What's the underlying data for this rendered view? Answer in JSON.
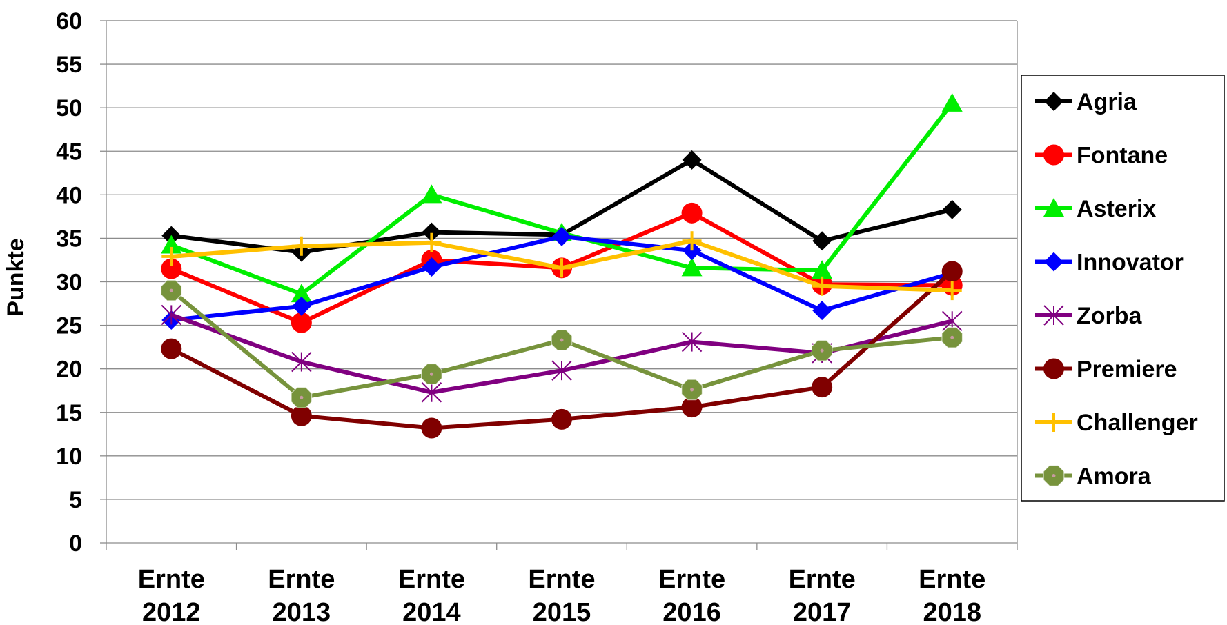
{
  "chart_data": {
    "type": "line",
    "ylabel": "Punkte",
    "ylim": [
      0,
      60
    ],
    "ytick_step": 5,
    "grid": "horizontal",
    "legend": "right",
    "categories": [
      [
        "Ernte",
        "2012"
      ],
      [
        "Ernte",
        "2013"
      ],
      [
        "Ernte",
        "2014"
      ],
      [
        "Ernte",
        "2015"
      ],
      [
        "Ernte",
        "2016"
      ],
      [
        "Ernte",
        "2017"
      ],
      [
        "Ernte",
        "2018"
      ]
    ],
    "series": [
      {
        "name": "Agria",
        "color": "#000000",
        "marker": "diamond",
        "values": [
          35.3,
          33.4,
          35.7,
          35.4,
          44.0,
          34.7,
          38.3
        ]
      },
      {
        "name": "Fontane",
        "color": "#ff0000",
        "marker": "circle",
        "values": [
          31.5,
          25.3,
          32.5,
          31.6,
          37.9,
          29.7,
          29.6
        ]
      },
      {
        "name": "Asterix",
        "color": "#00ee00",
        "marker": "triangle",
        "values": [
          34.2,
          28.6,
          40.0,
          35.6,
          31.6,
          31.3,
          50.5
        ]
      },
      {
        "name": "Innovator",
        "color": "#0000ff",
        "marker": "diamond",
        "values": [
          25.6,
          27.2,
          31.7,
          35.2,
          33.6,
          26.7,
          31.0
        ]
      },
      {
        "name": "Zorba",
        "color": "#800080",
        "marker": "star",
        "values": [
          26.2,
          20.8,
          17.3,
          19.8,
          23.1,
          21.8,
          25.5
        ]
      },
      {
        "name": "Premiere",
        "color": "#800000",
        "marker": "circle",
        "values": [
          22.3,
          14.6,
          13.2,
          14.2,
          15.6,
          17.9,
          31.2
        ]
      },
      {
        "name": "Challenger",
        "color": "#ffc000",
        "marker": "plus",
        "values": [
          32.9,
          34.1,
          34.5,
          31.6,
          34.7,
          29.5,
          29.0
        ]
      },
      {
        "name": "Amora",
        "color": "#77933c",
        "marker": "octagon",
        "values": [
          29.0,
          16.7,
          19.4,
          23.3,
          17.6,
          22.1,
          23.6
        ]
      }
    ]
  }
}
